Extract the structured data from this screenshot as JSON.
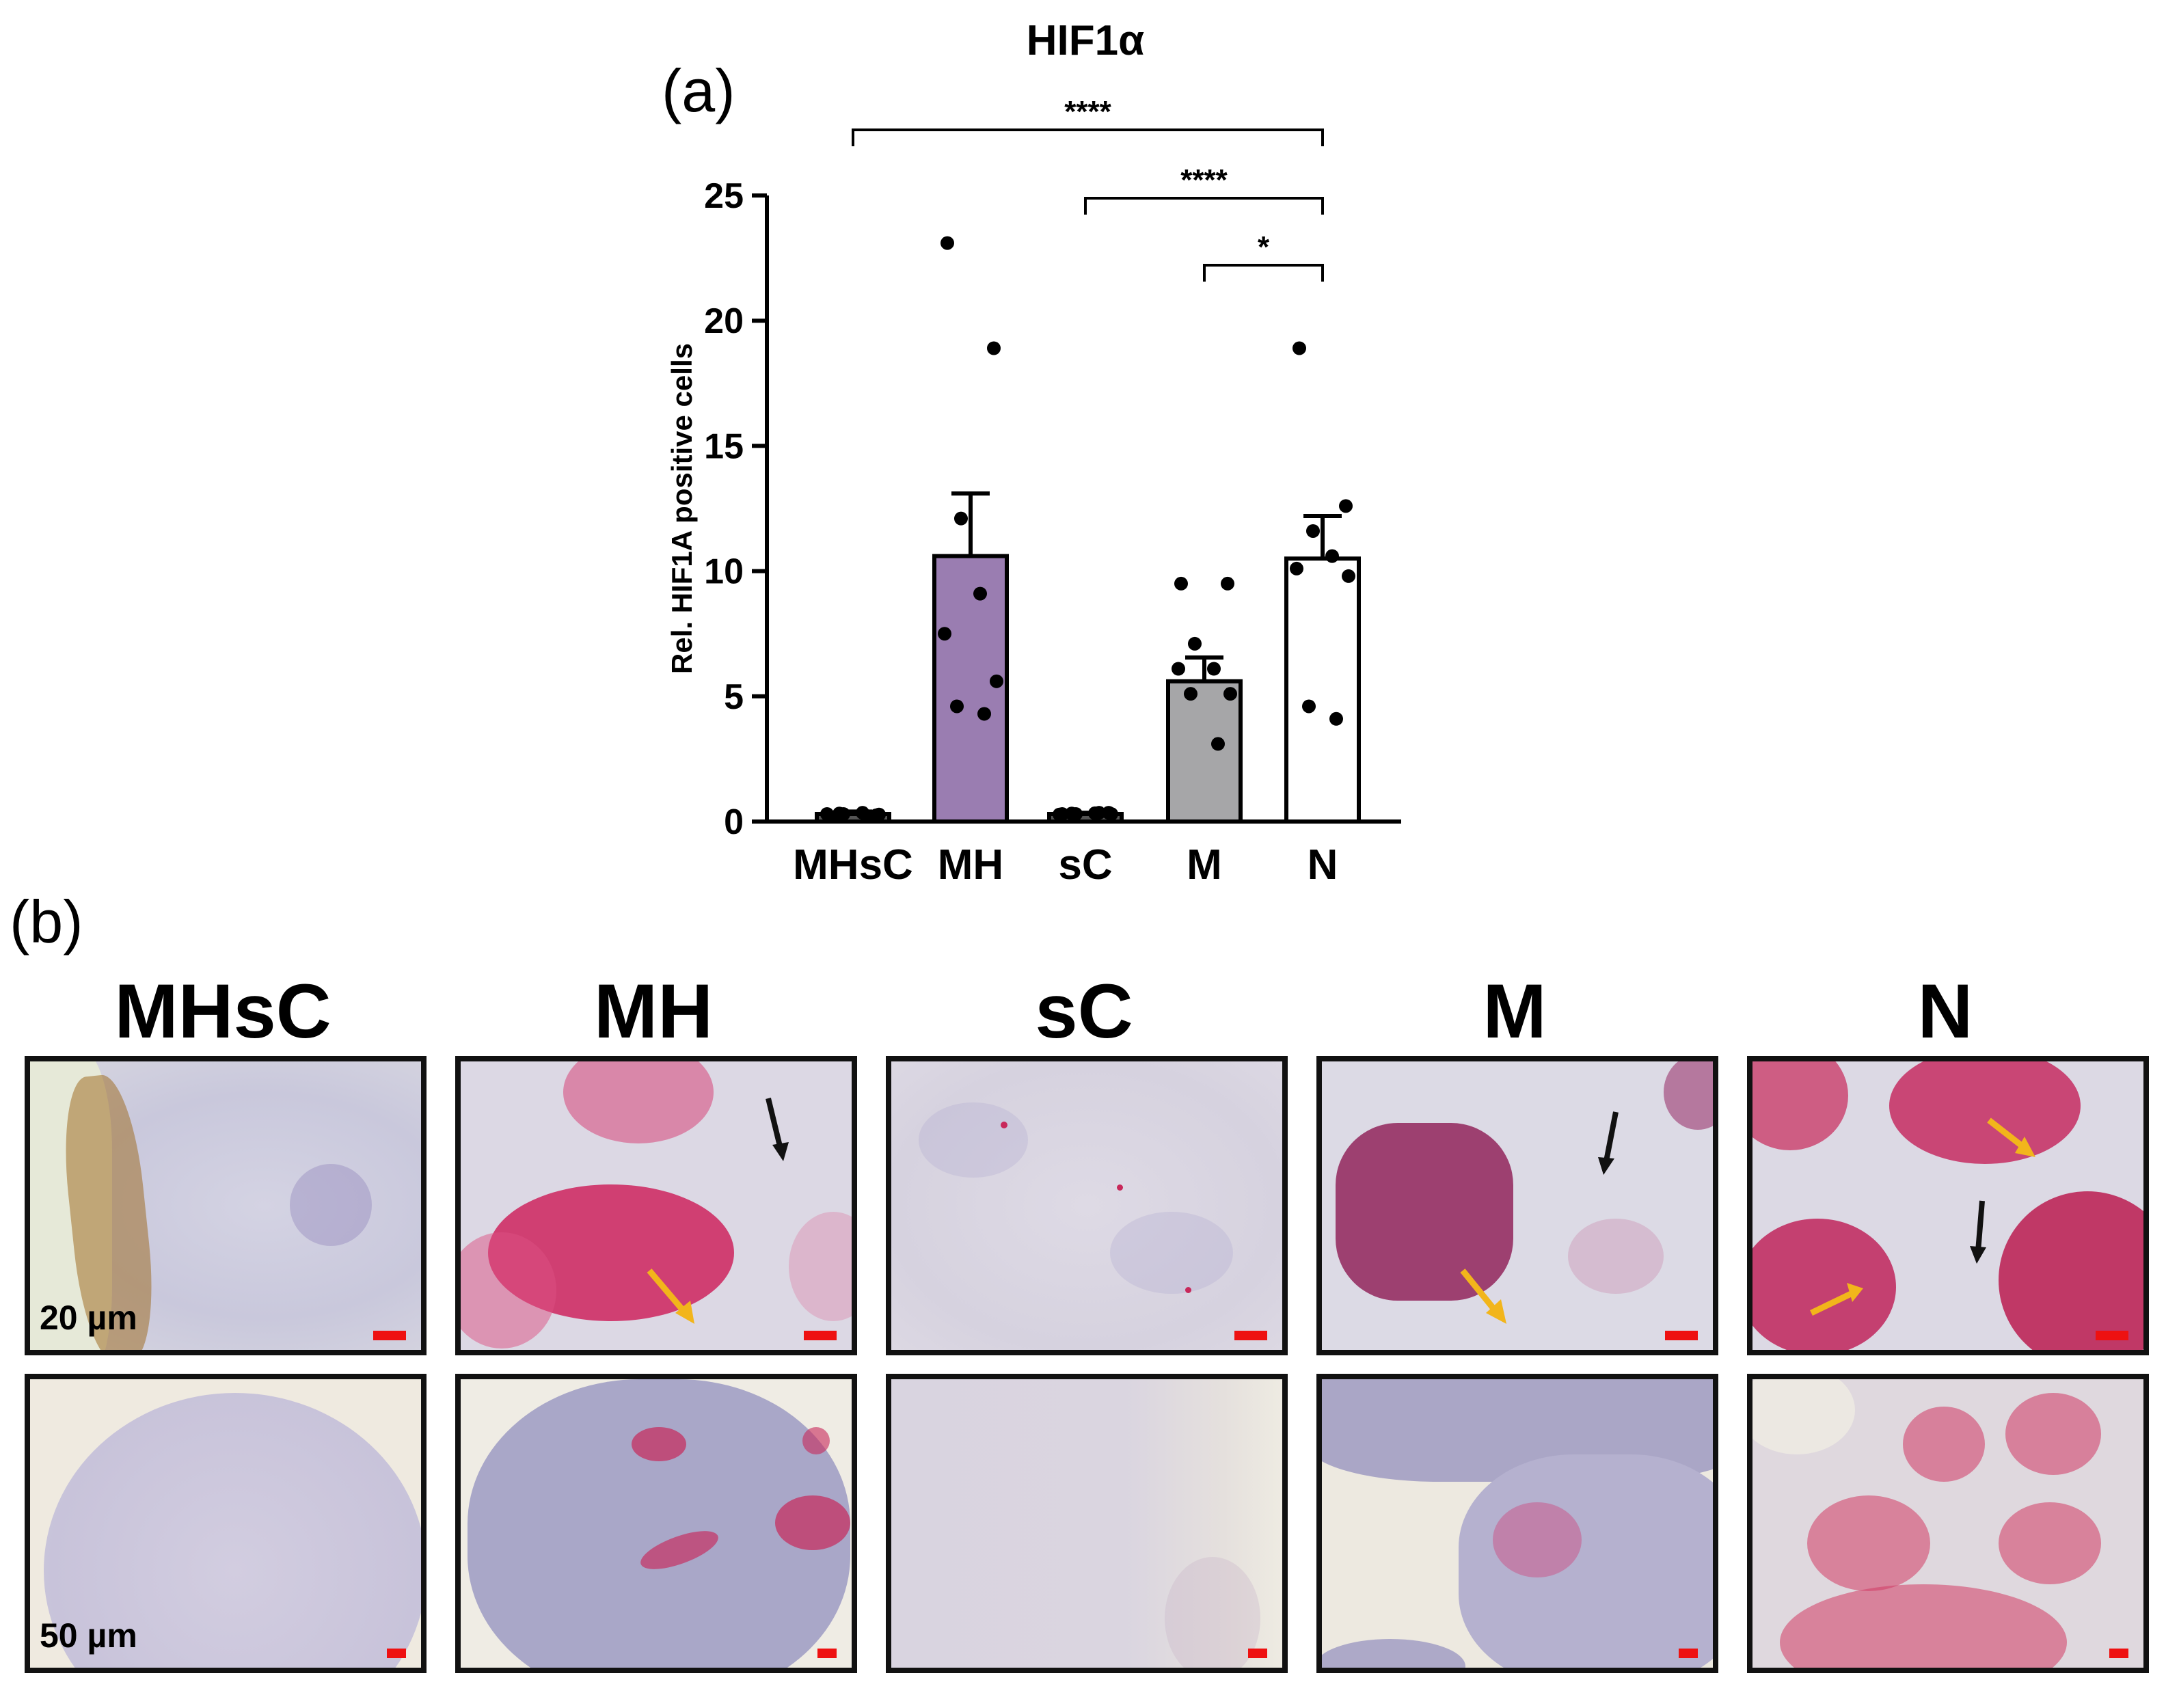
{
  "chart_data": {
    "type": "bar",
    "title": "HIF1α",
    "panel_label": "(a)",
    "ylabel": "Rel. HIF1A positive cells",
    "xlabel": "",
    "ylim": [
      0,
      25
    ],
    "yticks": [
      "0",
      "5",
      "10",
      "15",
      "20",
      "25"
    ],
    "categories": [
      "MHsC",
      "MH",
      "sC",
      "M",
      "N"
    ],
    "values": [
      0.3,
      10.6,
      0.3,
      5.6,
      10.5
    ],
    "sem": [
      0.1,
      2.5,
      0.05,
      0.95,
      1.7
    ],
    "bar_colors": [
      "#555555",
      "#9a7db1",
      "#555555",
      "#a6a6a8",
      "#ffffff"
    ],
    "points": [
      [
        0.2,
        0.25,
        0.3,
        0.35,
        0.3,
        0.28,
        0.32,
        0.22
      ],
      [
        23.1,
        18.9,
        12.1,
        9.1,
        7.5,
        5.6,
        4.6,
        4.3
      ],
      [
        0.3,
        0.35,
        0.3,
        0.33,
        0.28,
        0.3,
        0.32,
        0.35
      ],
      [
        9.5,
        9.5,
        7.1,
        6.1,
        6.1,
        5.1,
        5.1,
        3.1
      ],
      [
        18.9,
        12.6,
        11.6,
        10.6,
        10.1,
        9.8,
        4.6,
        4.1
      ]
    ],
    "significance": [
      {
        "from": "MHsC",
        "to": "N",
        "label": "****"
      },
      {
        "from": "sC",
        "to": "N",
        "label": "****"
      },
      {
        "from": "M",
        "to": "N",
        "label": "*"
      }
    ]
  },
  "panel_b": {
    "label": "(b)",
    "columns": [
      "MHsC",
      "MH",
      "sC",
      "M",
      "N"
    ],
    "row_scale_labels": [
      "20 µm",
      "50 µm"
    ]
  },
  "colors": {
    "stain_red": "#c8285a",
    "tissue_blue": "#b6b8d8",
    "background_tissue": "#e9e6ee",
    "scalebar": "#ee1111",
    "arrow_yellow": "#f2b51b",
    "arrow_black": "#111111"
  }
}
